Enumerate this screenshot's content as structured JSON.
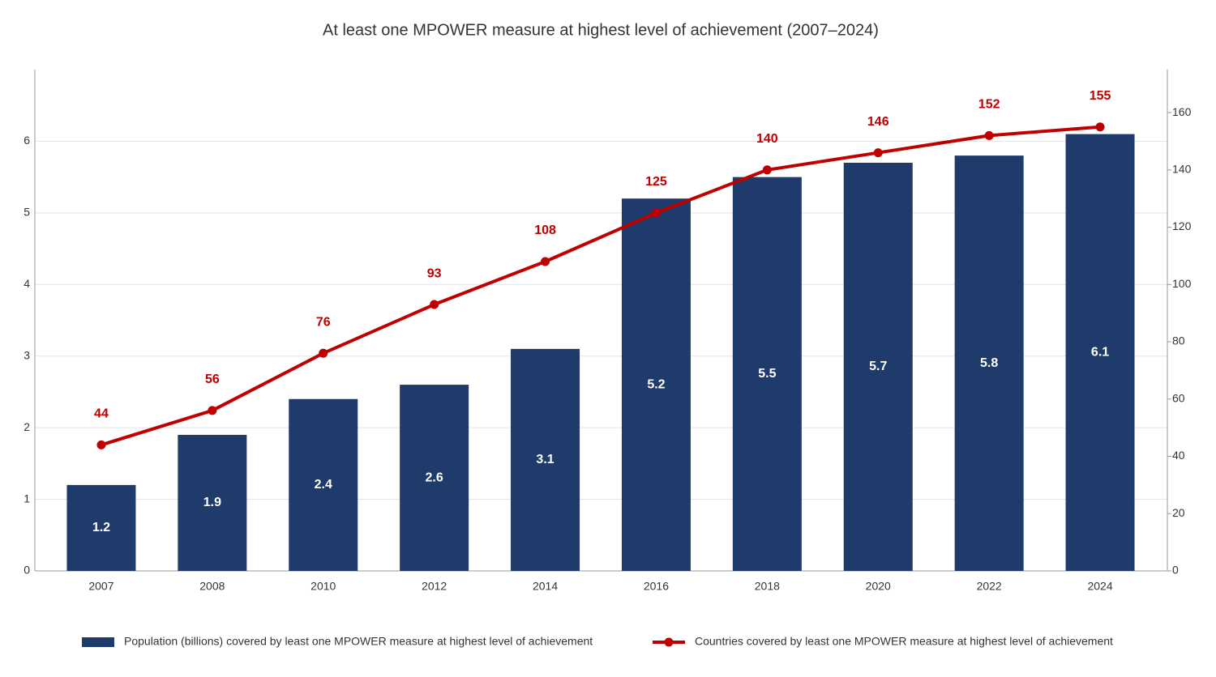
{
  "chart_data": {
    "type": "bar",
    "title": "At least one MPOWER measure at highest level of achievement (2007–2024)",
    "categories": [
      "2007",
      "2008",
      "2010",
      "2012",
      "2014",
      "2016",
      "2018",
      "2020",
      "2022",
      "2024"
    ],
    "series": [
      {
        "name": "Population (billions) covered by least one MPOWER measure at highest level of achievement",
        "type": "bar",
        "color": "#1f3b6b",
        "values": [
          1.2,
          1.9,
          2.4,
          2.6,
          3.1,
          5.2,
          5.5,
          5.7,
          5.8,
          6.1
        ]
      },
      {
        "name": "Countries covered by least one MPOWER measure at highest level of achievement",
        "type": "line",
        "axis": "y2",
        "color": "#c00000",
        "values": [
          44,
          56,
          76,
          93,
          108,
          125,
          140,
          146,
          152,
          155
        ]
      }
    ],
    "ylim": [
      0,
      7
    ],
    "yticks": [
      0,
      1,
      2,
      3,
      4,
      5,
      6
    ],
    "y2lim": [
      0,
      175
    ],
    "y2ticks": [
      0,
      20,
      40,
      60,
      80,
      100,
      120,
      140,
      160
    ],
    "grid": true,
    "legend": "bottom"
  }
}
